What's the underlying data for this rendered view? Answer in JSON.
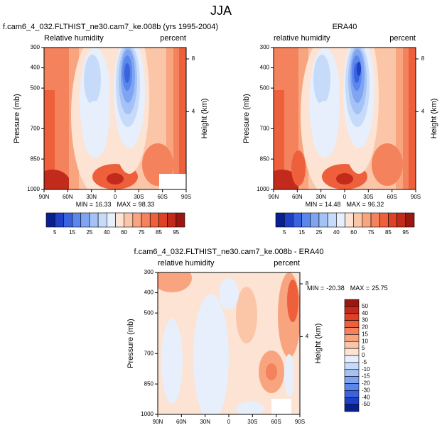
{
  "title": "JJA",
  "panels": [
    {
      "title": "f.cam6_4_032.FLTHIST_ne30.cam7_ke.008b (yrs 1995-2004)",
      "left_label": "Relative humidity",
      "right_label": "percent",
      "ylabel": "Pressure (mb)",
      "y2label": "Height (km)",
      "xlim": [
        90,
        -90
      ],
      "xticks": [
        {
          "value": 90,
          "label": "90N"
        },
        {
          "value": 60,
          "label": "60N"
        },
        {
          "value": 30,
          "label": "30N"
        },
        0,
        {
          "value": -30,
          "label": "30S"
        },
        {
          "value": -60,
          "label": "60S"
        },
        {
          "value": -90,
          "label": "90S"
        }
      ],
      "ylim": [
        1000,
        300
      ],
      "yticks": [
        300,
        400,
        500,
        700,
        850,
        1000
      ],
      "y2ticks": [
        4,
        8
      ],
      "stats": {
        "min_label": "MIN =",
        "min": 16.33,
        "max_label": "MAX =",
        "max": 98.33
      },
      "colorbar": {
        "ticks": [
          5,
          15,
          25,
          40,
          60,
          75,
          85,
          95
        ],
        "colors": [
          "#0a1f8f",
          "#1f3fc4",
          "#3a63e0",
          "#5b86ec",
          "#7fa5f2",
          "#a4c2f6",
          "#c6daf9",
          "#e6effb",
          "#fde3d3",
          "#fbc6a8",
          "#f8a57f",
          "#f4825c",
          "#ee5f3c",
          "#dd4128",
          "#c22b1b",
          "#9b1711"
        ]
      }
    },
    {
      "title": "ERA40",
      "left_label": "relative humidity",
      "right_label": "percent",
      "ylabel": "Pressure (mb)",
      "y2label": "Height (km)",
      "xlim": [
        90,
        -90
      ],
      "xticks": [
        {
          "value": 90,
          "label": "90N"
        },
        {
          "value": 60,
          "label": "60N"
        },
        {
          "value": 30,
          "label": "30N"
        },
        0,
        {
          "value": -30,
          "label": "30S"
        },
        {
          "value": -60,
          "label": "60S"
        },
        {
          "value": -90,
          "label": "90S"
        }
      ],
      "ylim": [
        1000,
        300
      ],
      "yticks": [
        300,
        400,
        500,
        700,
        850,
        1000
      ],
      "y2ticks": [
        4,
        8
      ],
      "stats": {
        "min_label": "MIN =",
        "min": 14.48,
        "max_label": "MAX =",
        "max": 96.32
      },
      "colorbar": {
        "ticks": [
          5,
          15,
          25,
          40,
          60,
          75,
          85,
          95
        ],
        "colors": [
          "#0a1f8f",
          "#1f3fc4",
          "#3a63e0",
          "#5b86ec",
          "#7fa5f2",
          "#a4c2f6",
          "#c6daf9",
          "#e6effb",
          "#fde3d3",
          "#fbc6a8",
          "#f8a57f",
          "#f4825c",
          "#ee5f3c",
          "#dd4128",
          "#c22b1b",
          "#9b1711"
        ]
      }
    },
    {
      "title": "f.cam6_4_032.FLTHIST_ne30.cam7_ke.008b - ERA40",
      "left_label": "relative humidity",
      "right_label": "percent",
      "ylabel": "Pressure (mb)",
      "y2label": "Height (km)",
      "xlim": [
        90,
        -90
      ],
      "xticks": [
        {
          "value": 90,
          "label": "90N"
        },
        {
          "value": 60,
          "label": "60N"
        },
        {
          "value": 30,
          "label": "30N"
        },
        0,
        {
          "value": -30,
          "label": "30S"
        },
        {
          "value": -60,
          "label": "60S"
        },
        {
          "value": -90,
          "label": "90S"
        }
      ],
      "ylim": [
        1000,
        300
      ],
      "yticks": [
        300,
        400,
        500,
        700,
        850,
        1000
      ],
      "y2ticks": [
        4,
        8
      ],
      "stats": {
        "min_label": "MIN =",
        "min": -20.38,
        "max_label": "MAX =",
        "max": 25.75
      },
      "colorbar": {
        "ticks": [
          50,
          40,
          30,
          20,
          15,
          10,
          5,
          0,
          -5,
          -10,
          -15,
          -20,
          -30,
          -40,
          -50
        ],
        "colors": [
          "#9b1711",
          "#c22b1b",
          "#dd4128",
          "#ee5f3c",
          "#f4825c",
          "#f8a57f",
          "#fbc6a8",
          "#fde3d3",
          "#e6effb",
          "#c6daf9",
          "#a4c2f6",
          "#7fa5f2",
          "#5b86ec",
          "#3a63e0",
          "#1f3fc4",
          "#0a1f8f"
        ]
      }
    }
  ]
}
